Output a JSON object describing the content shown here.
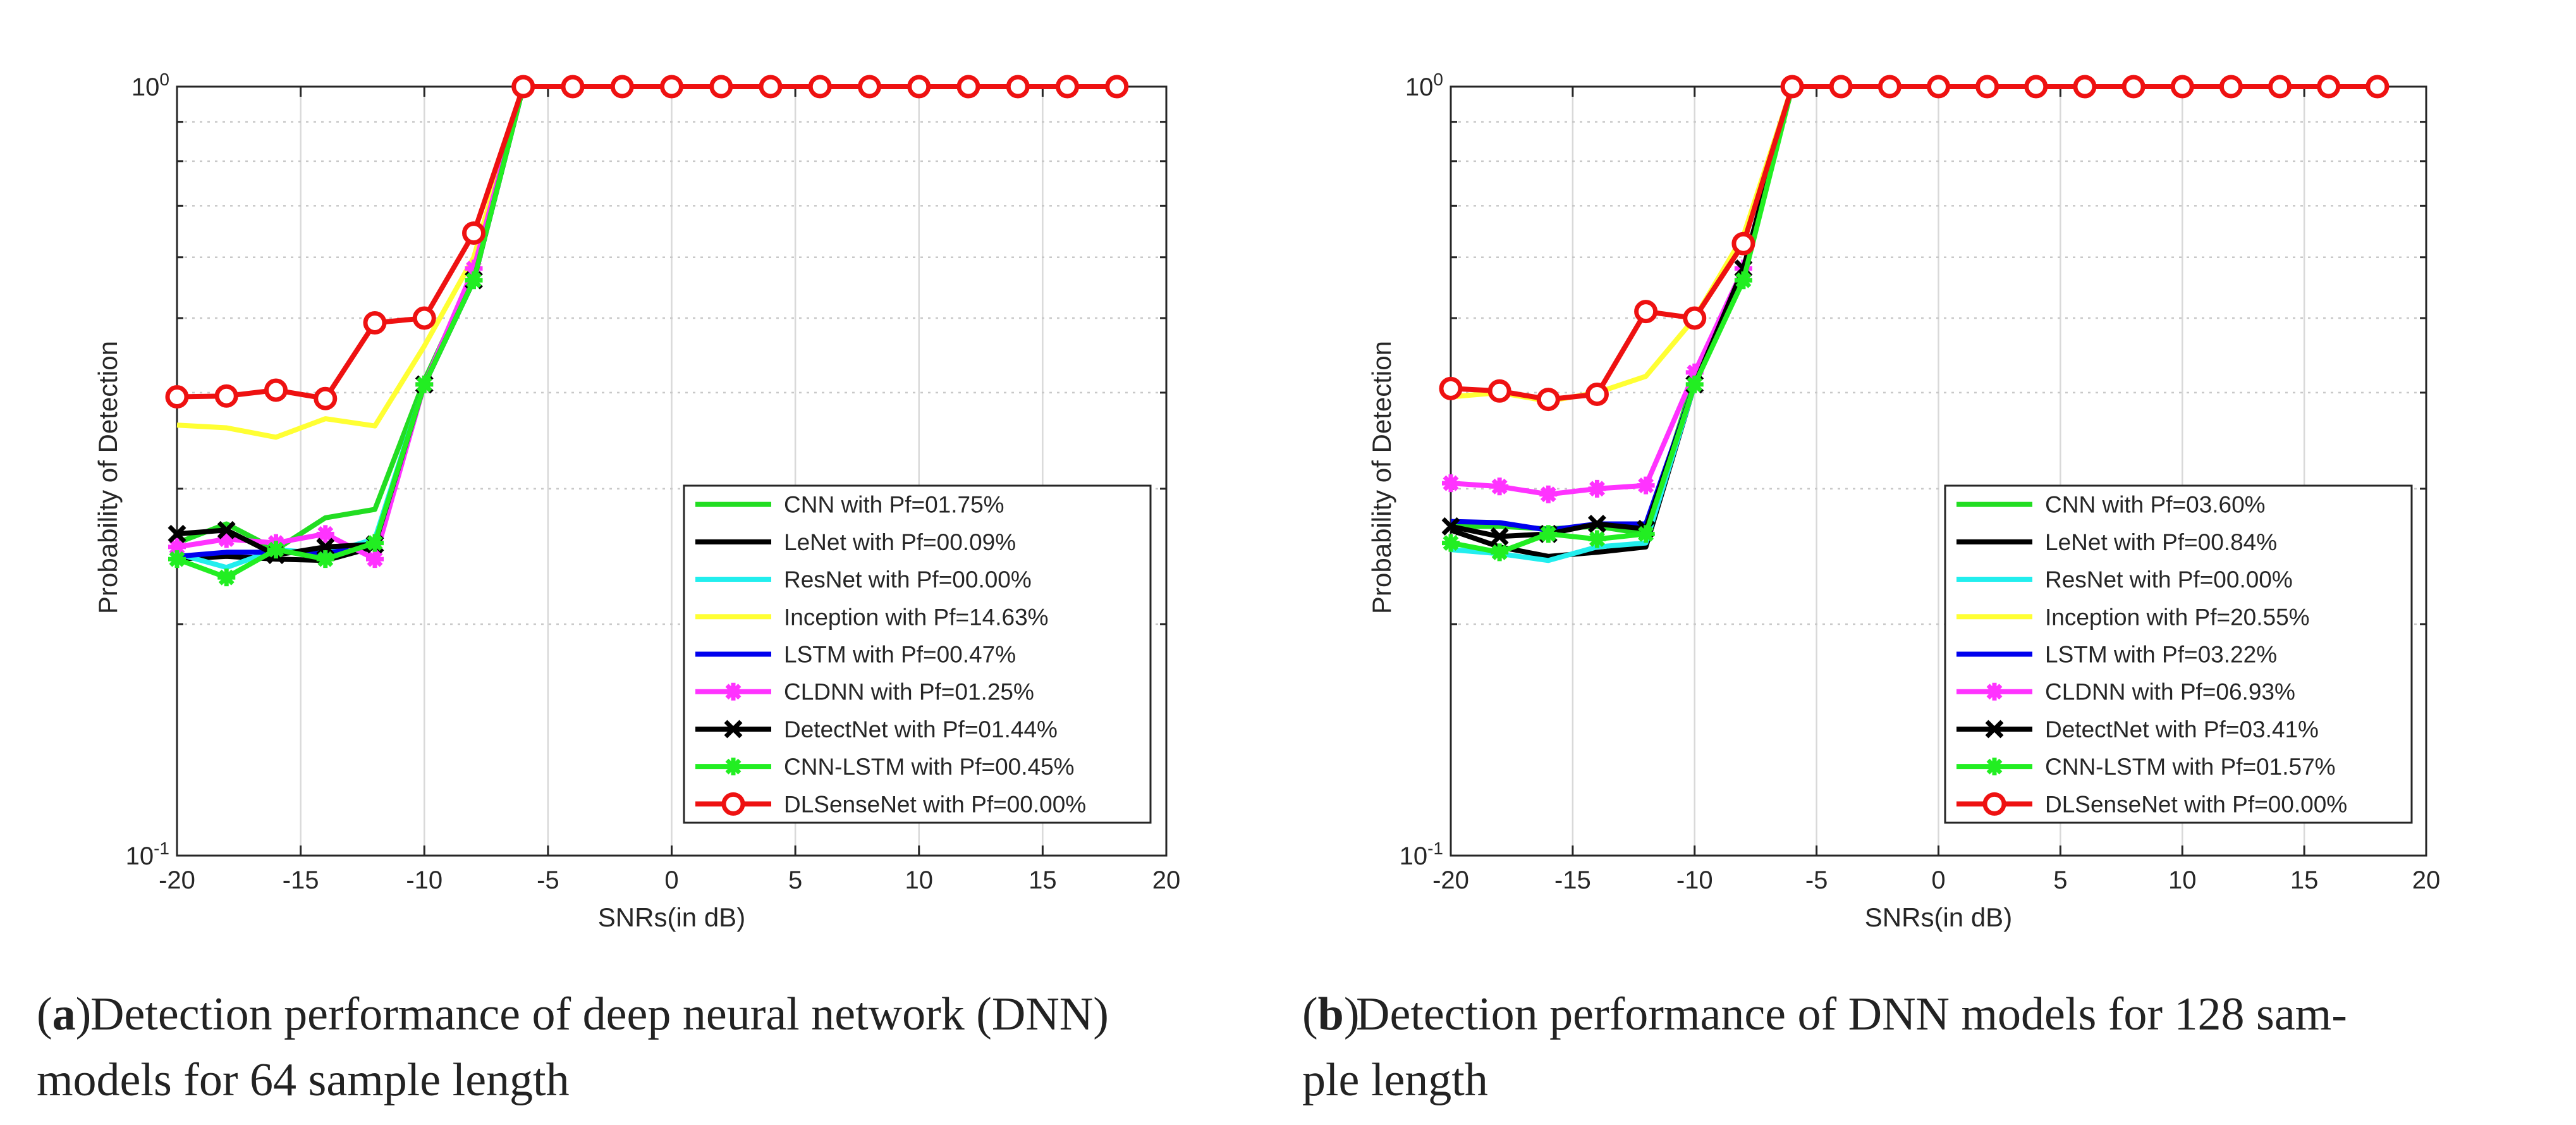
{
  "chart_data": [
    {
      "type": "line",
      "panel": "a",
      "caption_label": "a",
      "caption_lines": [
        "Detection performance of deep neural network (DNN)",
        "models for 64 sample length"
      ],
      "xlabel": "SNRs(in dB)",
      "ylabel": "Probability of Detection",
      "xlim": [
        -20,
        20
      ],
      "ylim": [
        0.1,
        1.0
      ],
      "yscale": "log",
      "xticks": [
        -20,
        -15,
        -10,
        -5,
        0,
        5,
        10,
        15,
        20
      ],
      "xtick_labels": [
        "-20",
        "-15",
        "-10",
        "-5",
        "0",
        "5",
        "10",
        "15",
        "20"
      ],
      "ytick_labels": [
        {
          "value": 1.0,
          "base": "10",
          "exp": "0"
        },
        {
          "value": 0.1,
          "base": "10",
          "exp": "-1"
        }
      ],
      "grid": true,
      "legend_position": "lower-right",
      "series": [
        {
          "name": "CNN with Pf=01.75%",
          "color": "#22dd22",
          "marker": "none",
          "x": [
            -20,
            -18,
            -16,
            -14,
            -12,
            -10,
            -8,
            -6,
            -4,
            -2,
            0,
            2,
            4,
            6,
            8,
            10,
            12,
            14,
            16,
            18
          ],
          "y": [
            0.255,
            0.27,
            0.25,
            0.275,
            0.282,
            0.415,
            0.57,
            1,
            1,
            1,
            1,
            1,
            1,
            1,
            1,
            1,
            1,
            1,
            1,
            1
          ]
        },
        {
          "name": "LeNet with Pf=00.09%",
          "color": "#000000",
          "marker": "none",
          "x": [
            -20,
            -18,
            -16,
            -14,
            -12,
            -10,
            -8,
            -6,
            -4,
            -2,
            0,
            2,
            4,
            6,
            8,
            10,
            12,
            14,
            16,
            18
          ],
          "y": [
            0.243,
            0.245,
            0.243,
            0.242,
            0.252,
            0.41,
            0.56,
            1,
            1,
            1,
            1,
            1,
            1,
            1,
            1,
            1,
            1,
            1,
            1,
            1
          ]
        },
        {
          "name": "ResNet with Pf=00.00%",
          "color": "#22eeee",
          "marker": "none",
          "x": [
            -20,
            -18,
            -16,
            -14,
            -12,
            -10,
            -8,
            -6,
            -4,
            -2,
            0,
            2,
            4,
            6,
            8,
            10,
            12,
            14,
            16,
            18
          ],
          "y": [
            0.247,
            0.237,
            0.25,
            0.247,
            0.258,
            0.41,
            0.56,
            1,
            1,
            1,
            1,
            1,
            1,
            1,
            1,
            1,
            1,
            1,
            1,
            1
          ]
        },
        {
          "name": "Inception with Pf=14.63%",
          "color": "#ffff33",
          "marker": "none",
          "x": [
            -20,
            -18,
            -16,
            -14,
            -12,
            -10,
            -8,
            -6,
            -4,
            -2,
            0,
            2,
            4,
            6,
            8,
            10,
            12,
            14,
            16,
            18
          ],
          "y": [
            0.363,
            0.36,
            0.35,
            0.37,
            0.362,
            0.46,
            0.6,
            1,
            1,
            1,
            1,
            1,
            1,
            1,
            1,
            1,
            1,
            1,
            1,
            1
          ]
        },
        {
          "name": "LSTM with Pf=00.47%",
          "color": "#0000ee",
          "marker": "none",
          "x": [
            -20,
            -18,
            -16,
            -14,
            -12,
            -10,
            -8,
            -6,
            -4,
            -2,
            0,
            2,
            4,
            6,
            8,
            10,
            12,
            14,
            16,
            18
          ],
          "y": [
            0.245,
            0.248,
            0.248,
            0.247,
            0.254,
            0.41,
            0.56,
            1,
            1,
            1,
            1,
            1,
            1,
            1,
            1,
            1,
            1,
            1,
            1,
            1
          ]
        },
        {
          "name": "CLDNN with Pf=01.25%",
          "color": "#ff33ff",
          "marker": "star",
          "x": [
            -20,
            -18,
            -16,
            -14,
            -12,
            -10,
            -8,
            -6,
            -4,
            -2,
            0,
            2,
            4,
            6,
            8,
            10,
            12,
            14,
            16,
            18
          ],
          "y": [
            0.252,
            0.258,
            0.255,
            0.262,
            0.243,
            0.41,
            0.58,
            1,
            1,
            1,
            1,
            1,
            1,
            1,
            1,
            1,
            1,
            1,
            1,
            1
          ]
        },
        {
          "name": "DetectNet with Pf=01.44%",
          "color": "#000000",
          "marker": "x",
          "x": [
            -20,
            -18,
            -16,
            -14,
            -12,
            -10,
            -8,
            -6,
            -4,
            -2,
            0,
            2,
            4,
            6,
            8,
            10,
            12,
            14,
            16,
            18
          ],
          "y": [
            0.262,
            0.265,
            0.246,
            0.252,
            0.254,
            0.41,
            0.56,
            1,
            1,
            1,
            1,
            1,
            1,
            1,
            1,
            1,
            1,
            1,
            1,
            1
          ]
        },
        {
          "name": "CNN-LSTM with Pf=00.45%",
          "color": "#22ee22",
          "marker": "star",
          "x": [
            -20,
            -18,
            -16,
            -14,
            -12,
            -10,
            -8,
            -6,
            -4,
            -2,
            0,
            2,
            4,
            6,
            8,
            10,
            12,
            14,
            16,
            18
          ],
          "y": [
            0.243,
            0.23,
            0.25,
            0.243,
            0.255,
            0.41,
            0.56,
            1,
            1,
            1,
            1,
            1,
            1,
            1,
            1,
            1,
            1,
            1,
            1,
            1
          ]
        },
        {
          "name": "DLSenseNet with Pf=00.00%",
          "color": "#ee1111",
          "marker": "circle",
          "x": [
            -20,
            -18,
            -16,
            -14,
            -12,
            -10,
            -8,
            -6,
            -4,
            -2,
            0,
            2,
            4,
            6,
            8,
            10,
            12,
            14,
            16,
            18
          ],
          "y": [
            0.395,
            0.396,
            0.403,
            0.393,
            0.493,
            0.5,
            0.645,
            1,
            1,
            1,
            1,
            1,
            1,
            1,
            1,
            1,
            1,
            1,
            1,
            1
          ]
        }
      ]
    },
    {
      "type": "line",
      "panel": "b",
      "caption_label": "b",
      "caption_lines": [
        "Detection performance of DNN models for 128 sam-",
        "ple length"
      ],
      "xlabel": "SNRs(in dB)",
      "ylabel": "Probability of Detection",
      "xlim": [
        -20,
        20
      ],
      "ylim": [
        0.1,
        1.0
      ],
      "yscale": "log",
      "xticks": [
        -20,
        -15,
        -10,
        -5,
        0,
        5,
        10,
        15,
        20
      ],
      "xtick_labels": [
        "-20",
        "-15",
        "-10",
        "-5",
        "0",
        "5",
        "10",
        "15",
        "20"
      ],
      "ytick_labels": [
        {
          "value": 1.0,
          "base": "10",
          "exp": "0"
        },
        {
          "value": 0.1,
          "base": "10",
          "exp": "-1"
        }
      ],
      "grid": true,
      "legend_position": "lower-right",
      "series": [
        {
          "name": "CNN with Pf=03.60%",
          "color": "#22dd22",
          "marker": "none",
          "x": [
            -20,
            -18,
            -16,
            -14,
            -12,
            -10,
            -8,
            -6,
            -4,
            -2,
            0,
            2,
            4,
            6,
            8,
            10,
            12,
            14,
            16,
            18
          ],
          "y": [
            0.268,
            0.268,
            0.266,
            0.268,
            0.262,
            0.42,
            0.57,
            1,
            1,
            1,
            1,
            1,
            1,
            1,
            1,
            1,
            1,
            1,
            1,
            1
          ]
        },
        {
          "name": "LeNet with Pf=00.84%",
          "color": "#000000",
          "marker": "none",
          "x": [
            -20,
            -18,
            -16,
            -14,
            -12,
            -10,
            -8,
            -6,
            -4,
            -2,
            0,
            2,
            4,
            6,
            8,
            10,
            12,
            14,
            16,
            18
          ],
          "y": [
            0.265,
            0.252,
            0.245,
            0.248,
            0.252,
            0.41,
            0.57,
            1,
            1,
            1,
            1,
            1,
            1,
            1,
            1,
            1,
            1,
            1,
            1,
            1
          ]
        },
        {
          "name": "ResNet with Pf=00.00%",
          "color": "#22eeee",
          "marker": "none",
          "x": [
            -20,
            -18,
            -16,
            -14,
            -12,
            -10,
            -8,
            -6,
            -4,
            -2,
            0,
            2,
            4,
            6,
            8,
            10,
            12,
            14,
            16,
            18
          ],
          "y": [
            0.25,
            0.247,
            0.242,
            0.252,
            0.255,
            0.41,
            0.57,
            1,
            1,
            1,
            1,
            1,
            1,
            1,
            1,
            1,
            1,
            1,
            1,
            1
          ]
        },
        {
          "name": "Inception with Pf=20.55%",
          "color": "#ffff33",
          "marker": "none",
          "x": [
            -20,
            -18,
            -16,
            -14,
            -12,
            -10,
            -8,
            -6,
            -4,
            -2,
            0,
            2,
            4,
            6,
            8,
            10,
            12,
            14,
            16,
            18
          ],
          "y": [
            0.395,
            0.4,
            0.39,
            0.4,
            0.42,
            0.5,
            0.64,
            1,
            1,
            1,
            1,
            1,
            1,
            1,
            1,
            1,
            1,
            1,
            1,
            1
          ]
        },
        {
          "name": "LSTM with Pf=03.22%",
          "color": "#0000ee",
          "marker": "none",
          "x": [
            -20,
            -18,
            -16,
            -14,
            -12,
            -10,
            -8,
            -6,
            -4,
            -2,
            0,
            2,
            4,
            6,
            8,
            10,
            12,
            14,
            16,
            18
          ],
          "y": [
            0.272,
            0.271,
            0.265,
            0.27,
            0.27,
            0.41,
            0.57,
            1,
            1,
            1,
            1,
            1,
            1,
            1,
            1,
            1,
            1,
            1,
            1,
            1
          ]
        },
        {
          "name": "CLDNN with Pf=06.93%",
          "color": "#ff33ff",
          "marker": "star",
          "x": [
            -20,
            -18,
            -16,
            -14,
            -12,
            -10,
            -8,
            -6,
            -4,
            -2,
            0,
            2,
            4,
            6,
            8,
            10,
            12,
            14,
            16,
            18
          ],
          "y": [
            0.305,
            0.302,
            0.295,
            0.3,
            0.303,
            0.425,
            0.58,
            1,
            1,
            1,
            1,
            1,
            1,
            1,
            1,
            1,
            1,
            1,
            1,
            1
          ]
        },
        {
          "name": "DetectNet with Pf=03.41%",
          "color": "#000000",
          "marker": "x",
          "x": [
            -20,
            -18,
            -16,
            -14,
            -12,
            -10,
            -8,
            -6,
            -4,
            -2,
            0,
            2,
            4,
            6,
            8,
            10,
            12,
            14,
            16,
            18
          ],
          "y": [
            0.268,
            0.26,
            0.262,
            0.27,
            0.266,
            0.41,
            0.58,
            1,
            1,
            1,
            1,
            1,
            1,
            1,
            1,
            1,
            1,
            1,
            1,
            1
          ]
        },
        {
          "name": "CNN-LSTM with Pf=01.57%",
          "color": "#22ee22",
          "marker": "star",
          "x": [
            -20,
            -18,
            -16,
            -14,
            -12,
            -10,
            -8,
            -6,
            -4,
            -2,
            0,
            2,
            4,
            6,
            8,
            10,
            12,
            14,
            16,
            18
          ],
          "y": [
            0.255,
            0.248,
            0.262,
            0.258,
            0.262,
            0.41,
            0.56,
            1,
            1,
            1,
            1,
            1,
            1,
            1,
            1,
            1,
            1,
            1,
            1,
            1
          ]
        },
        {
          "name": "DLSenseNet with Pf=00.00%",
          "color": "#ee1111",
          "marker": "circle",
          "x": [
            -20,
            -18,
            -16,
            -14,
            -12,
            -10,
            -8,
            -6,
            -4,
            -2,
            0,
            2,
            4,
            6,
            8,
            10,
            12,
            14,
            16,
            18
          ],
          "y": [
            0.405,
            0.402,
            0.392,
            0.398,
            0.51,
            0.5,
            0.625,
            1,
            1,
            1,
            1,
            1,
            1,
            1,
            1,
            1,
            1,
            1,
            1,
            1
          ]
        }
      ]
    }
  ]
}
